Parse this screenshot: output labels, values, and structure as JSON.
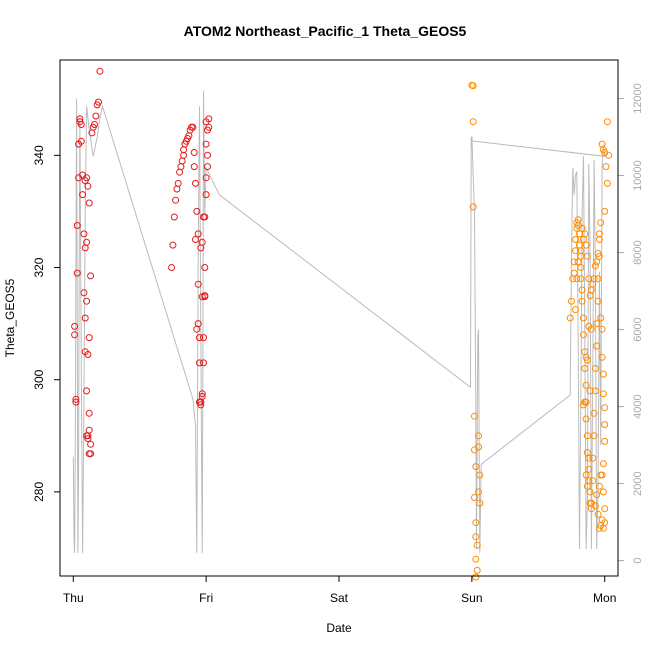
{
  "chart_data": {
    "type": "scatter",
    "title": "ATOM2 Northeast_Pacific_1 Theta_GEOS5",
    "xlabel": "Date",
    "ylabel": "Theta_GEOS5",
    "x_ticks": [
      "Thu",
      "Fri",
      "Sat",
      "Sun",
      "Mon"
    ],
    "y_ticks": [
      280,
      300,
      320,
      340
    ],
    "y_right_ticks": [
      0,
      2000,
      4000,
      6000,
      8000,
      10000,
      12000
    ],
    "xlim": [
      -0.1,
      4.1
    ],
    "ylim": [
      265,
      357
    ],
    "y_right_lim": [
      -400,
      13000
    ],
    "colors": {
      "series_1": "#e41a1c",
      "series_2": "#ff8c00",
      "altitude": "#bbbbbb"
    },
    "series": [
      {
        "color": "#e41a1c",
        "points": [
          [
            0.01,
            308
          ],
          [
            0.01,
            309.5
          ],
          [
            0.02,
            296.5
          ],
          [
            0.02,
            296
          ],
          [
            0.03,
            319
          ],
          [
            0.03,
            327.5
          ],
          [
            0.04,
            336
          ],
          [
            0.04,
            342
          ],
          [
            0.05,
            346.5
          ],
          [
            0.05,
            346
          ],
          [
            0.06,
            345.5
          ],
          [
            0.06,
            342.5
          ],
          [
            0.07,
            336.5
          ],
          [
            0.07,
            333
          ],
          [
            0.08,
            326
          ],
          [
            0.08,
            315.5
          ],
          [
            0.09,
            311
          ],
          [
            0.09,
            305
          ],
          [
            0.1,
            298
          ],
          [
            0.1,
            290
          ],
          [
            0.11,
            289.5
          ],
          [
            0.11,
            290
          ],
          [
            0.12,
            291
          ],
          [
            0.12,
            286.8
          ],
          [
            0.13,
            286.8
          ],
          [
            0.13,
            288.5
          ],
          [
            0.12,
            294
          ],
          [
            0.11,
            304.5
          ],
          [
            0.1,
            314
          ],
          [
            0.09,
            323.5
          ],
          [
            0.1,
            324.5
          ],
          [
            0.09,
            335.5
          ],
          [
            0.1,
            336
          ],
          [
            0.11,
            334.5
          ],
          [
            0.12,
            331.5
          ],
          [
            0.13,
            318.5
          ],
          [
            0.14,
            344
          ],
          [
            0.15,
            345
          ],
          [
            0.16,
            345.5
          ],
          [
            0.17,
            347
          ],
          [
            0.18,
            349
          ],
          [
            0.19,
            349.5
          ],
          [
            0.2,
            355
          ],
          [
            0.12,
            307.5
          ]
        ]
      },
      {
        "color": "#e41a1c",
        "points": [
          [
            0.74,
            320
          ],
          [
            0.75,
            324
          ],
          [
            0.76,
            329
          ],
          [
            0.77,
            332
          ],
          [
            0.78,
            334
          ],
          [
            0.79,
            335
          ],
          [
            0.8,
            337
          ],
          [
            0.81,
            338
          ],
          [
            0.82,
            339
          ],
          [
            0.83,
            340
          ],
          [
            0.83,
            341
          ],
          [
            0.84,
            342
          ],
          [
            0.85,
            342.5
          ],
          [
            0.86,
            343
          ],
          [
            0.87,
            343.5
          ],
          [
            0.88,
            344.5
          ],
          [
            0.89,
            345
          ],
          [
            0.9,
            345
          ],
          [
            0.91,
            340.5
          ],
          [
            0.91,
            338
          ],
          [
            0.92,
            335
          ],
          [
            0.93,
            330
          ],
          [
            0.94,
            326
          ],
          [
            0.94,
            317
          ],
          [
            0.94,
            310
          ],
          [
            0.95,
            307.5
          ],
          [
            0.95,
            303
          ],
          [
            0.95,
            296
          ],
          [
            0.96,
            296
          ],
          [
            0.96,
            295.5
          ],
          [
            0.97,
            297
          ],
          [
            0.97,
            297.5
          ],
          [
            0.98,
            303
          ],
          [
            0.98,
            307.5
          ],
          [
            0.99,
            315
          ],
          [
            0.99,
            320
          ],
          [
            0.99,
            329
          ],
          [
            1.0,
            333
          ],
          [
            1.0,
            336
          ],
          [
            1.01,
            338
          ],
          [
            1.01,
            340
          ],
          [
            1.0,
            342
          ],
          [
            1.01,
            344.5
          ],
          [
            1.02,
            345
          ],
          [
            1.02,
            346.5
          ],
          [
            1.0,
            346
          ],
          [
            0.99,
            314.8
          ],
          [
            0.97,
            314.8
          ],
          [
            0.96,
            323.5
          ],
          [
            0.97,
            324.5
          ],
          [
            0.98,
            329
          ],
          [
            0.92,
            325
          ],
          [
            0.93,
            309
          ]
        ]
      },
      {
        "color": "#ff8c00",
        "points": [
          [
            3.0,
            352.5
          ],
          [
            3.01,
            352.4
          ],
          [
            3.01,
            346
          ],
          [
            3.01,
            330.8
          ],
          [
            3.02,
            293.5
          ],
          [
            3.02,
            287.5
          ],
          [
            3.03,
            284.5
          ],
          [
            3.02,
            279
          ],
          [
            3.03,
            274.5
          ],
          [
            3.03,
            272
          ],
          [
            3.04,
            270.5
          ],
          [
            3.03,
            268
          ],
          [
            3.04,
            266
          ],
          [
            3.03,
            264.8
          ],
          [
            3.05,
            290
          ],
          [
            3.05,
            288
          ],
          [
            3.06,
            283
          ],
          [
            3.05,
            280
          ],
          [
            3.06,
            278
          ]
        ]
      },
      {
        "color": "#ff8c00",
        "points": [
          [
            3.74,
            311
          ],
          [
            3.75,
            314
          ],
          [
            3.76,
            318
          ],
          [
            3.77,
            319
          ],
          [
            3.77,
            321
          ],
          [
            3.78,
            323
          ],
          [
            3.78,
            325
          ],
          [
            3.79,
            327
          ],
          [
            3.79,
            328
          ],
          [
            3.8,
            328.5
          ],
          [
            3.8,
            327.5
          ],
          [
            3.81,
            326
          ],
          [
            3.81,
            324
          ],
          [
            3.82,
            322
          ],
          [
            3.82,
            320
          ],
          [
            3.82,
            318
          ],
          [
            3.83,
            316
          ],
          [
            3.83,
            314
          ],
          [
            3.84,
            311
          ],
          [
            3.84,
            308
          ],
          [
            3.85,
            305
          ],
          [
            3.85,
            302
          ],
          [
            3.86,
            299
          ],
          [
            3.86,
            296
          ],
          [
            3.86,
            293
          ],
          [
            3.87,
            290
          ],
          [
            3.87,
            287
          ],
          [
            3.88,
            284
          ],
          [
            3.88,
            282
          ],
          [
            3.89,
            280
          ],
          [
            3.89,
            278
          ],
          [
            3.9,
            277
          ],
          [
            3.9,
            278
          ],
          [
            3.91,
            282
          ],
          [
            3.91,
            286
          ],
          [
            3.92,
            290
          ],
          [
            3.92,
            294
          ],
          [
            3.93,
            298
          ],
          [
            3.93,
            302
          ],
          [
            3.94,
            306
          ],
          [
            3.94,
            310
          ],
          [
            3.95,
            314
          ],
          [
            3.95,
            318
          ],
          [
            3.96,
            322
          ],
          [
            3.96,
            325
          ],
          [
            3.97,
            328
          ],
          [
            3.97,
            311
          ],
          [
            3.98,
            309
          ],
          [
            3.98,
            304
          ],
          [
            3.99,
            301
          ],
          [
            3.99,
            297.5
          ],
          [
            4.0,
            295
          ],
          [
            4.0,
            292
          ],
          [
            4.0,
            289
          ],
          [
            3.99,
            285
          ],
          [
            3.98,
            283
          ],
          [
            3.99,
            280
          ],
          [
            4.0,
            277
          ],
          [
            3.97,
            274
          ],
          [
            3.96,
            273.5
          ],
          [
            3.98,
            275
          ],
          [
            3.99,
            273.5
          ],
          [
            4.0,
            274.5
          ],
          [
            3.96,
            326
          ],
          [
            3.95,
            322.5
          ],
          [
            3.94,
            321
          ],
          [
            3.93,
            320.3
          ],
          [
            3.92,
            318
          ],
          [
            3.91,
            317
          ],
          [
            3.9,
            316
          ],
          [
            3.89,
            315
          ],
          [
            3.88,
            318
          ],
          [
            3.87,
            322
          ],
          [
            3.86,
            324
          ],
          [
            3.85,
            326
          ],
          [
            3.84,
            325
          ],
          [
            3.83,
            327
          ],
          [
            3.82,
            323
          ],
          [
            3.8,
            321
          ],
          [
            3.79,
            318
          ],
          [
            3.78,
            312.5
          ],
          [
            3.9,
            309
          ],
          [
            3.88,
            309.5
          ],
          [
            3.87,
            303.5
          ],
          [
            3.86,
            304
          ],
          [
            3.85,
            296
          ],
          [
            3.84,
            295.5
          ],
          [
            3.89,
            298
          ],
          [
            3.88,
            286
          ],
          [
            3.87,
            281
          ],
          [
            3.86,
            283
          ],
          [
            3.93,
            277.5
          ],
          [
            3.94,
            279.5
          ],
          [
            3.95,
            276
          ],
          [
            3.96,
            281
          ],
          [
            3.97,
            283
          ],
          [
            4.0,
            330
          ],
          [
            4.01,
            338
          ],
          [
            3.98,
            342
          ],
          [
            3.99,
            341
          ],
          [
            4.0,
            340.5
          ],
          [
            4.02,
            346
          ],
          [
            4.03,
            340
          ],
          [
            4.02,
            335
          ]
        ]
      }
    ],
    "altitude_line": {
      "color": "#bbbbbb",
      "points": [
        [
          0.0,
          2700
        ],
        [
          0.005,
          600
        ],
        [
          0.01,
          200
        ],
        [
          0.015,
          3000
        ],
        [
          0.02,
          7500
        ],
        [
          0.025,
          12000
        ],
        [
          0.03,
          6000
        ],
        [
          0.035,
          200
        ],
        [
          0.04,
          2500
        ],
        [
          0.045,
          8500
        ],
        [
          0.05,
          11500
        ],
        [
          0.06,
          5000
        ],
        [
          0.07,
          200
        ],
        [
          0.08,
          4000
        ],
        [
          0.09,
          9000
        ],
        [
          0.1,
          11800
        ],
        [
          0.12,
          11200
        ],
        [
          0.15,
          10500
        ],
        [
          0.18,
          11000
        ],
        [
          0.2,
          11500
        ],
        [
          0.22,
          11800
        ],
        [
          0.9,
          4200
        ],
        [
          0.92,
          3500
        ],
        [
          0.93,
          200
        ],
        [
          0.94,
          8000
        ],
        [
          0.95,
          11800
        ],
        [
          0.96,
          6000
        ],
        [
          0.97,
          200
        ],
        [
          0.975,
          4000
        ],
        [
          0.98,
          12200
        ],
        [
          0.99,
          9000
        ],
        [
          1.0,
          10200
        ],
        [
          1.1,
          9500
        ],
        [
          2.99,
          4500
        ],
        [
          2.995,
          11000
        ],
        [
          3.0,
          11000
        ],
        [
          3.02,
          9000
        ],
        [
          3.03,
          4000
        ],
        [
          3.035,
          300
        ],
        [
          3.04,
          3500
        ],
        [
          3.045,
          5800
        ],
        [
          3.05,
          6000
        ],
        [
          3.06,
          200
        ],
        [
          3.07,
          2500
        ],
        [
          3.74,
          4300
        ],
        [
          3.75,
          8000
        ],
        [
          3.76,
          10200
        ],
        [
          3.77,
          9500
        ],
        [
          3.78,
          10000
        ],
        [
          3.79,
          10100
        ],
        [
          3.8,
          6000
        ],
        [
          3.81,
          300
        ],
        [
          3.82,
          4000
        ],
        [
          3.83,
          9000
        ],
        [
          3.84,
          10500
        ],
        [
          3.85,
          6000
        ],
        [
          3.86,
          300
        ],
        [
          3.87,
          1500
        ],
        [
          3.88,
          10300
        ],
        [
          3.89,
          8000
        ],
        [
          3.9,
          300
        ],
        [
          3.91,
          5000
        ],
        [
          3.92,
          10400
        ],
        [
          3.93,
          7500
        ],
        [
          3.94,
          300
        ],
        [
          3.95,
          2000
        ],
        [
          3.96,
          7500
        ],
        [
          3.97,
          3000
        ],
        [
          3.98,
          10200
        ],
        [
          3.985,
          10600
        ],
        [
          3.99,
          10800
        ],
        [
          4.0,
          10500
        ],
        [
          3.0,
          10900
        ],
        [
          3.99,
          10500
        ]
      ]
    }
  }
}
